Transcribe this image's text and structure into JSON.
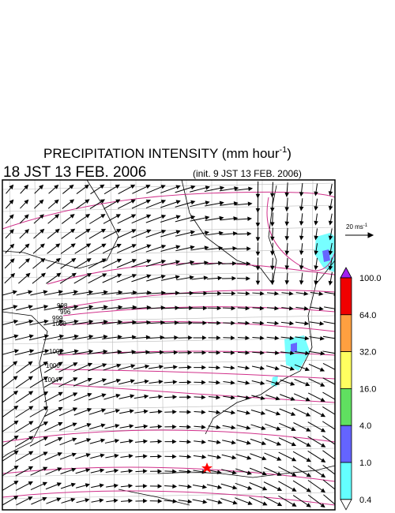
{
  "title": {
    "main": "PRECIPITATION INTENSITY (mm hour",
    "superscript": "-1",
    "close": ")"
  },
  "subtitle": {
    "time": "18 JST 13 FEB. 2006",
    "init": "(init. 9 JST 13 FEB. 2006)"
  },
  "reference_vector": {
    "label": "20 ms",
    "superscript": "-1"
  },
  "colorbar": {
    "levels": [
      "100.0",
      "64.0",
      "32.0",
      "16.0",
      "4.0",
      "1.0",
      "0.4"
    ],
    "colors": [
      "#a020f0",
      "#f00000",
      "#ffa040",
      "#ffff60",
      "#60e060",
      "#6464ff",
      "#64ffff",
      "#ffffff"
    ]
  },
  "isobar_labels": [
    "998",
    "996",
    "999",
    "1000",
    "1002",
    "1000",
    "1004"
  ]
}
